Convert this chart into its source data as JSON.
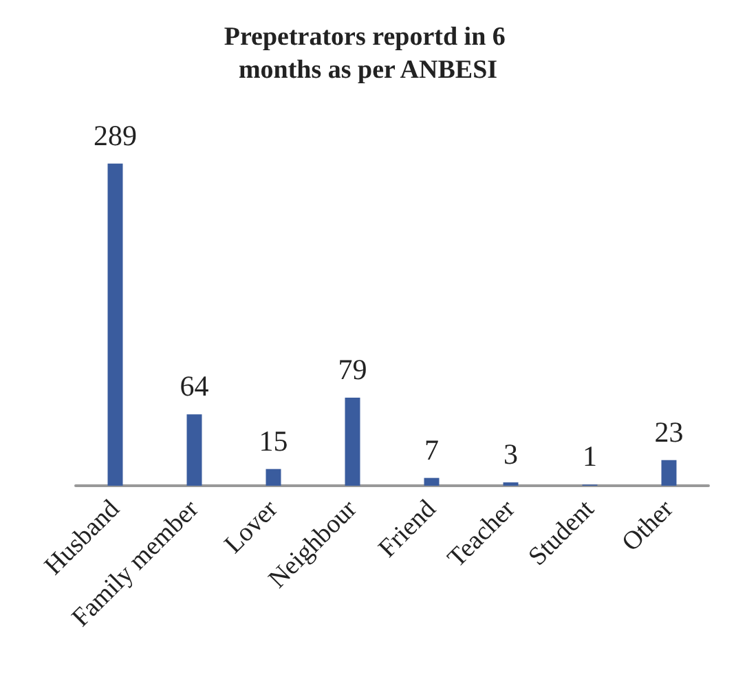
{
  "chart_data": {
    "type": "bar",
    "title": "Prepetrators reportd in 6 months as per ANBESI",
    "categories": [
      "Husband",
      "Family member",
      "Lover",
      "Neighbour",
      "Friend",
      "Teacher",
      "Student",
      "Other"
    ],
    "values": [
      289,
      64,
      15,
      79,
      7,
      3,
      1,
      23
    ],
    "color": "#3a5c9e",
    "data_labels": true
  }
}
